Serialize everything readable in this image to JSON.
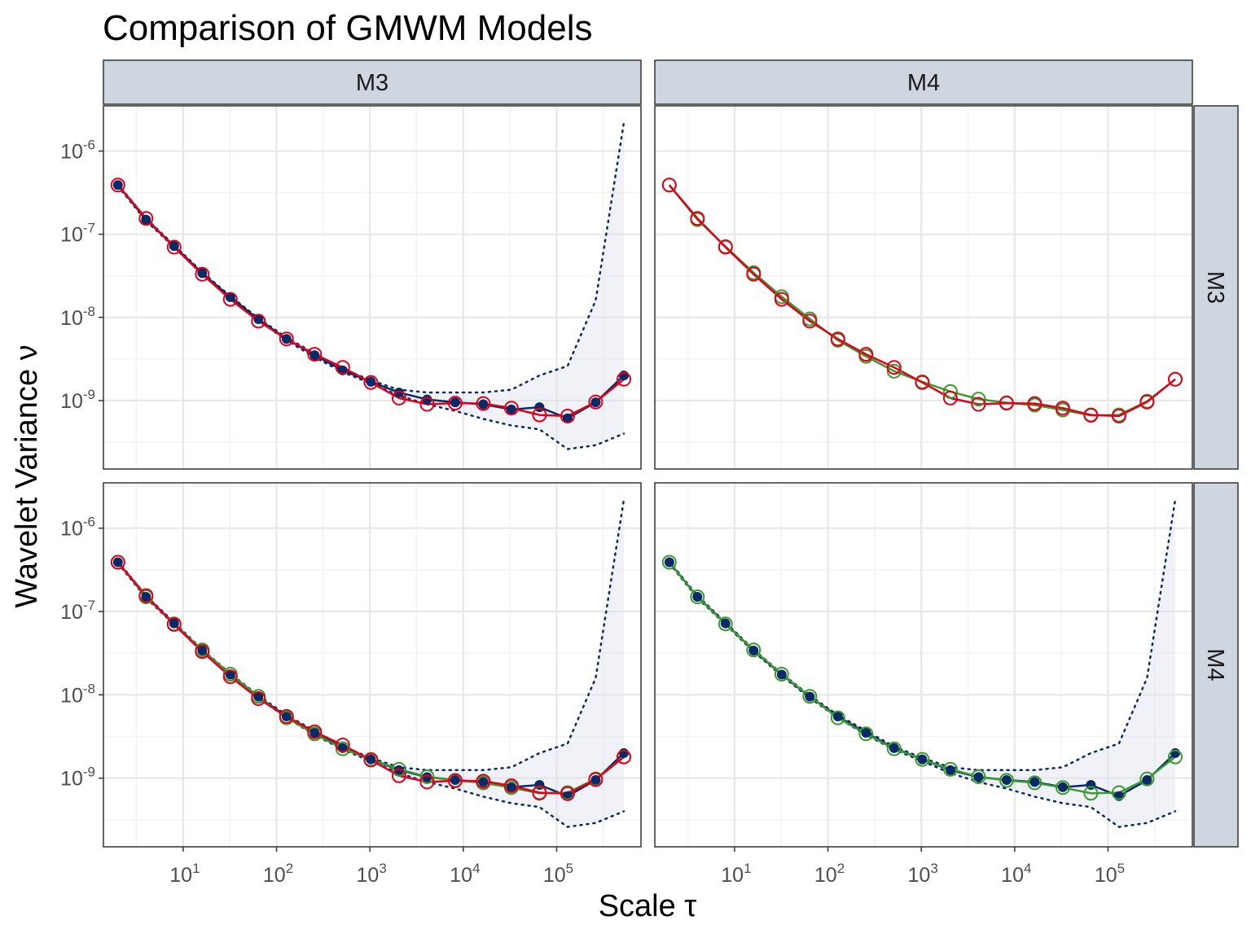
{
  "chart_data": {
    "type": "line",
    "title": "Comparison of GMWM Models",
    "xlabel": "Scale τ",
    "ylabel": "Wavelet Variance ν",
    "x_scale": "log10",
    "y_scale": "log10",
    "xlim": [
      1.4,
      800000
    ],
    "ylim": [
      1.5e-10,
      3.5e-06
    ],
    "x_ticks": [
      10,
      100,
      1000,
      10000,
      100000
    ],
    "x_tick_labels": [
      [
        "10",
        "1"
      ],
      [
        "10",
        "2"
      ],
      [
        "10",
        "3"
      ],
      [
        "10",
        "4"
      ],
      [
        "10",
        "5"
      ]
    ],
    "y_ticks": [
      1e-06,
      1e-07,
      1e-08,
      1e-09
    ],
    "y_tick_labels": [
      [
        "10",
        "-6"
      ],
      [
        "10",
        "-7"
      ],
      [
        "10",
        "-8"
      ],
      [
        "10",
        "-9"
      ]
    ],
    "grid": true,
    "facet_cols": [
      "M3",
      "M4"
    ],
    "facet_rows": [
      "M3",
      "M4"
    ],
    "colors": {
      "empirical": "#0a2a66",
      "ci_fill": "#dde3ee",
      "M3": "#e0001b",
      "M4": "#3a9a2f",
      "strip_fill": "#cfd6e0",
      "panel_border": "#333333",
      "grid_major": "#e6e6e6",
      "grid_minor": "#f3f3f3"
    },
    "x": [
      2,
      4,
      8,
      16,
      32,
      64,
      128,
      256,
      512,
      1024,
      2048,
      4096,
      8192,
      16384,
      32768,
      65536,
      131072,
      262144,
      524288
    ],
    "empirical": [
      3.9e-07,
      1.5e-07,
      7.2e-08,
      3.4e-08,
      1.75e-08,
      9.5e-09,
      5.5e-09,
      3.5e-09,
      2.3e-09,
      1.68e-09,
      1.25e-09,
      1.03e-09,
      9.5e-10,
      9e-10,
      7.8e-10,
      8.3e-10,
      6.1e-10,
      9.5e-10,
      2e-09
    ],
    "ci_upper": [
      4e-07,
      1.55e-07,
      7.4e-08,
      3.5e-08,
      1.8e-08,
      9.8e-09,
      5.7e-09,
      3.7e-09,
      2.4e-09,
      1.75e-09,
      1.35e-09,
      1.25e-09,
      1.25e-09,
      1.25e-09,
      1.35e-09,
      2e-09,
      2.6e-09,
      1.6e-08,
      2.2e-06
    ],
    "ci_lower": [
      3.8e-07,
      1.45e-07,
      7e-08,
      3.3e-08,
      1.7e-08,
      9.2e-09,
      5.3e-09,
      3.3e-09,
      2.2e-09,
      1.6e-09,
      1.15e-09,
      9e-10,
      7.5e-10,
      6e-10,
      5e-10,
      4.5e-10,
      2.6e-10,
      2.9e-10,
      4e-10
    ],
    "series": [
      {
        "name": "M3",
        "values": [
          3.9e-07,
          1.55e-07,
          7e-08,
          3.3e-08,
          1.65e-08,
          9e-09,
          5.5e-09,
          3.6e-09,
          2.5e-09,
          1.65e-09,
          1.07e-09,
          9e-10,
          9.3e-10,
          9.2e-10,
          8.1e-10,
          6.7e-10,
          6.5e-10,
          9.6e-10,
          1.8e-09
        ]
      },
      {
        "name": "M4",
        "values": [
          3.9e-07,
          1.5e-07,
          7.1e-08,
          3.45e-08,
          1.77e-08,
          9.6e-09,
          5.3e-09,
          3.4e-09,
          2.25e-09,
          1.68e-09,
          1.28e-09,
          1.04e-09,
          9.4e-10,
          8.8e-10,
          7.7e-10,
          6.6e-10,
          6.7e-10,
          9.8e-10,
          1.8e-09
        ]
      }
    ],
    "panels": [
      {
        "row": "M3",
        "col": "M3",
        "show_ci": true,
        "show_empirical": true,
        "models": [
          "M3"
        ]
      },
      {
        "row": "M3",
        "col": "M4",
        "show_ci": false,
        "show_empirical": false,
        "models": [
          "M4",
          "M3"
        ]
      },
      {
        "row": "M4",
        "col": "M3",
        "show_ci": true,
        "show_empirical": true,
        "models": [
          "M4",
          "M3"
        ]
      },
      {
        "row": "M4",
        "col": "M4",
        "show_ci": true,
        "show_empirical": true,
        "models": [
          "M4"
        ]
      }
    ]
  }
}
